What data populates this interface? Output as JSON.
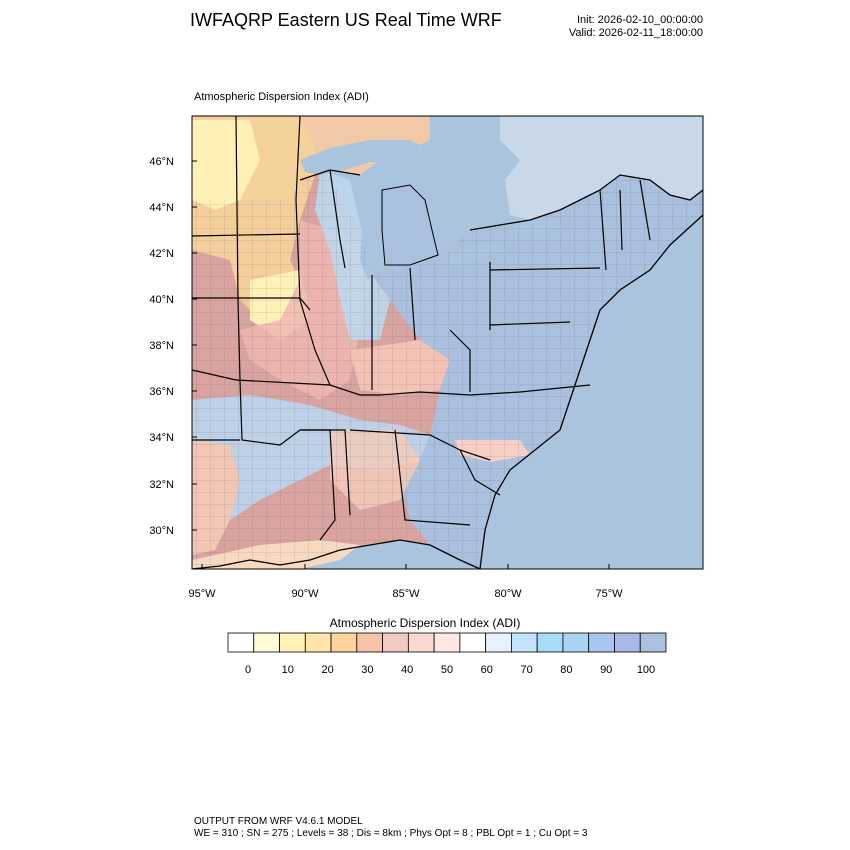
{
  "header": {
    "title": "IWFAQRP Eastern US Real Time WRF",
    "init": "Init: 2026-02-10_00:00:00",
    "valid": "Valid: 2026-02-11_18:00:00"
  },
  "map": {
    "subtitle": "Atmospheric Dispersion Index   (ADI)",
    "lat_ticks": [
      "46°N",
      "44°N",
      "42°N",
      "40°N",
      "38°N",
      "36°N",
      "34°N",
      "32°N",
      "30°N"
    ],
    "lon_ticks": [
      "95°W",
      "90°W",
      "85°W",
      "80°W",
      "75°W"
    ],
    "colors": {
      "ocean": "#a9c4dc",
      "lake": "#a9c4dc",
      "border": "#000000"
    }
  },
  "colorbar": {
    "title": "Atmospheric Dispersion Index  (ADI)",
    "labels": [
      "0",
      "10",
      "20",
      "30",
      "40",
      "50",
      "60",
      "70",
      "80",
      "90",
      "100"
    ],
    "colors": [
      "#ffffff",
      "#fffbd6",
      "#fff2b8",
      "#ffe6a8",
      "#ffd39b",
      "#f7c3a6",
      "#f4c9c3",
      "#fad9d4",
      "#fde8e6",
      "#ffffff",
      "#e6f0ff",
      "#c2e4fb",
      "#a6dcf7",
      "#a9d2f5",
      "#a9c4ee",
      "#a9b8e6",
      "#a9c0de"
    ]
  },
  "footer": {
    "line1": "OUTPUT FROM WRF V4.6.1 MODEL",
    "line2": "WE = 310 ; SN = 275 ; Levels = 38 ; Dis = 8km ; Phys Opt = 8 ; PBL Opt = 1 ; Cu Opt = 3"
  }
}
